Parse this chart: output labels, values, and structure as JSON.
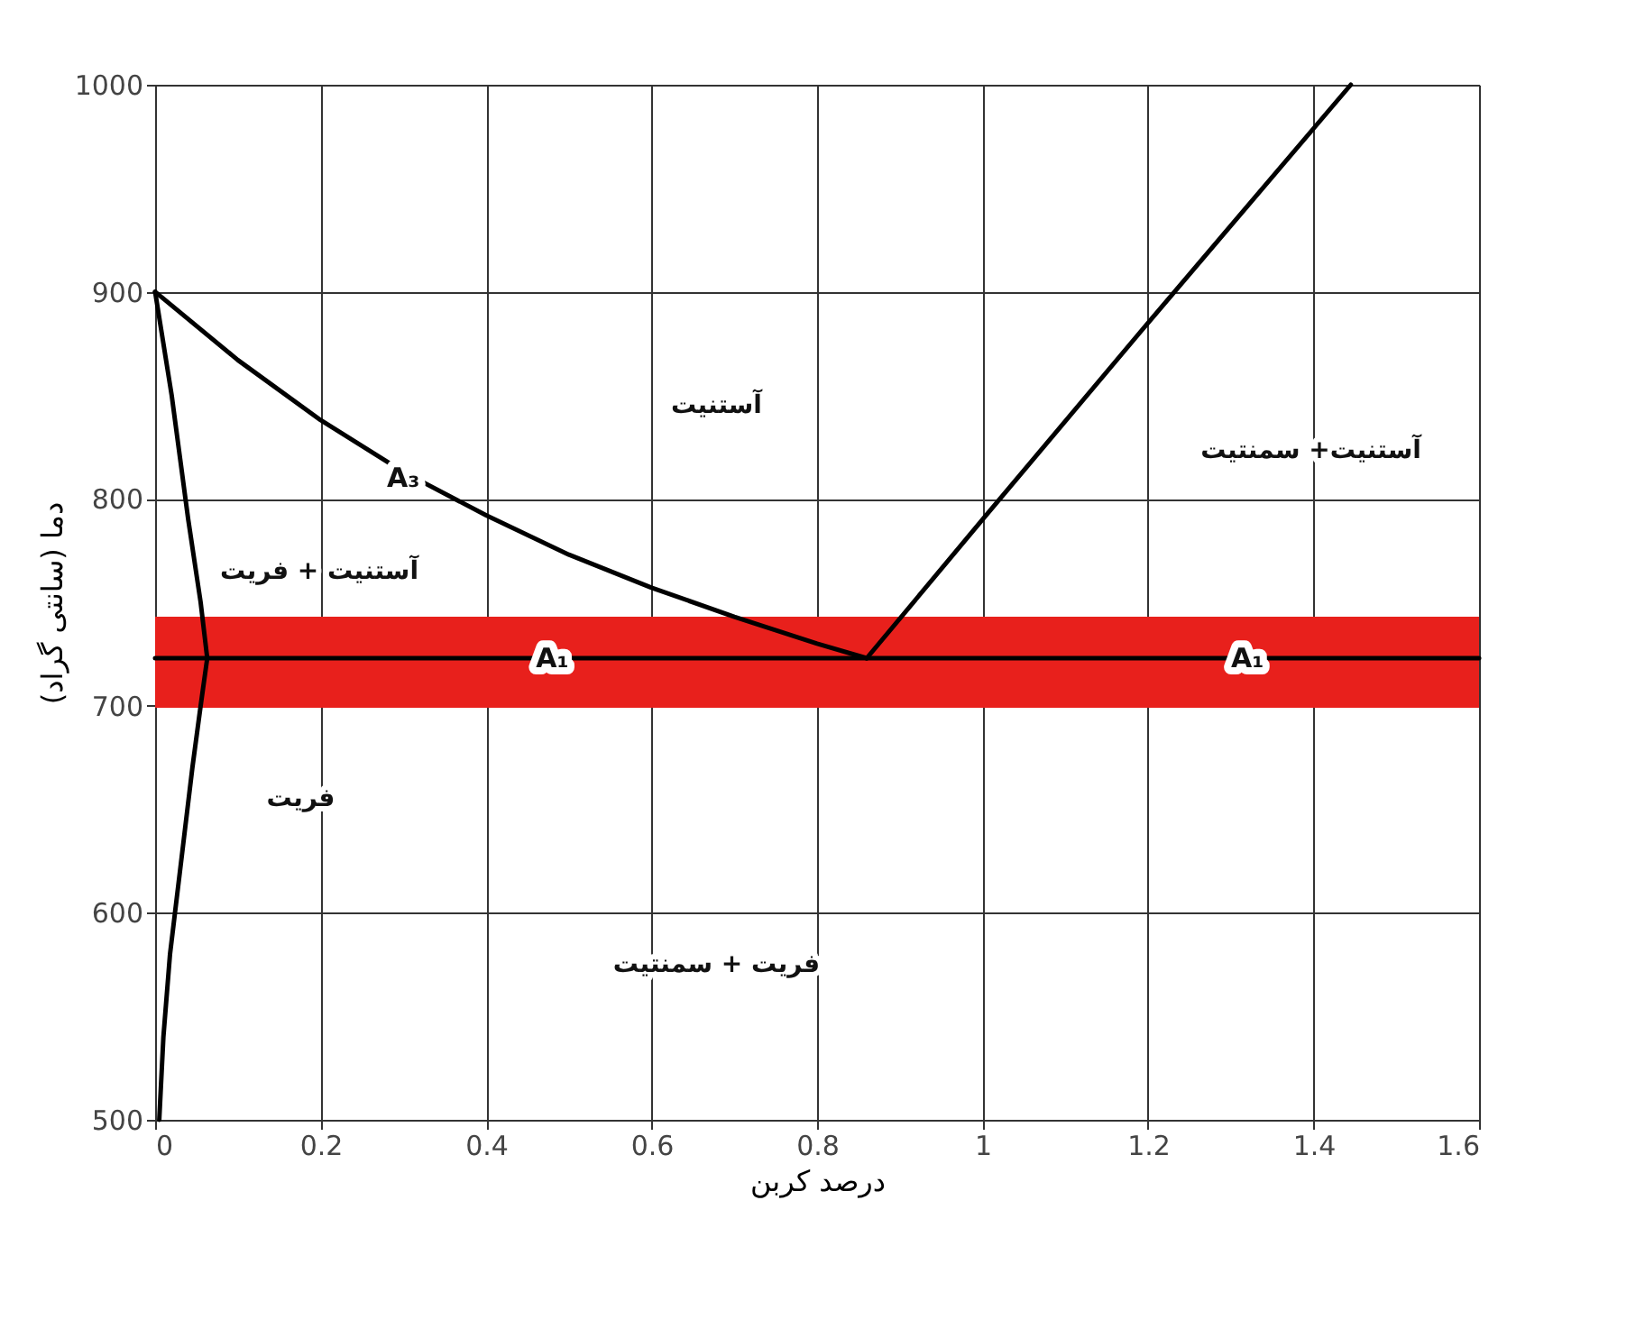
{
  "chart_data": {
    "type": "line",
    "xlabel": "درصد کربن",
    "ylabel": "دما (سانتی گراد)",
    "xlim": [
      0,
      1.6
    ],
    "ylim": [
      500,
      1000
    ],
    "xticks": [
      0,
      0.2,
      0.4,
      0.6,
      0.8,
      1,
      1.2,
      1.4,
      1.6
    ],
    "yticks": [
      500,
      600,
      700,
      800,
      900,
      1000
    ],
    "grid": true,
    "marker": "none",
    "line_style": "solid",
    "bands": [
      {
        "axis": "y",
        "from": 699,
        "to": 743,
        "color": "#e8201c"
      }
    ],
    "series": [
      {
        "color": "#000000",
        "x": [
          0,
          1.6
        ],
        "values": [
          723,
          723
        ]
      },
      {
        "color": "#000000",
        "x": [
          0,
          0.1,
          0.2,
          0.3,
          0.4,
          0.5,
          0.6,
          0.7,
          0.8,
          0.86
        ],
        "values": [
          900,
          867,
          838,
          813,
          792,
          773,
          757,
          743,
          730,
          723
        ]
      },
      {
        "color": "#000000",
        "x": [
          0.86,
          1.0,
          1.2,
          1.445
        ],
        "values": [
          723,
          790,
          885,
          1000
        ]
      },
      {
        "color": "#000000",
        "x": [
          0,
          0.02,
          0.04,
          0.055,
          0.063,
          0.055,
          0.045,
          0.03,
          0.018,
          0.01,
          0.005
        ],
        "values": [
          900,
          850,
          790,
          750,
          723,
          700,
          670,
          620,
          580,
          540,
          500
        ]
      }
    ],
    "annotations": [
      {
        "text": "A₃",
        "x": 0.3,
        "y": 810
      },
      {
        "text": "A₁",
        "x": 0.48,
        "y": 723
      },
      {
        "text": "A₁",
        "x": 1.32,
        "y": 723
      },
      "آستنیت",
      "آستنیت+ سمنتیت",
      "آستنیت + فریت",
      "فریت",
      "فریت + سمنتیت"
    ]
  }
}
